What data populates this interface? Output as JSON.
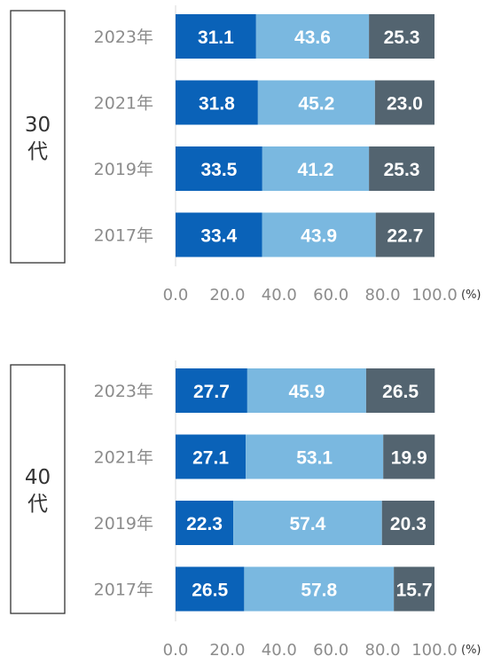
{
  "colors": {
    "series1": "#0a62b8",
    "series2": "#7ab8e0",
    "series3": "#536470",
    "box_border": "#333333",
    "category_text": "#8c8c8c"
  },
  "chart_data": [
    {
      "type": "bar",
      "orientation": "horizontal",
      "stacked": true,
      "group_label_line1": "30",
      "group_label_line2": "代",
      "categories": [
        "2023年",
        "2021年",
        "2019年",
        "2017年"
      ],
      "series": [
        {
          "values": [
            31.1,
            31.8,
            33.5,
            33.4
          ]
        },
        {
          "values": [
            43.6,
            45.2,
            41.2,
            43.9
          ]
        },
        {
          "values": [
            25.3,
            23.0,
            25.3,
            22.7
          ]
        }
      ],
      "value_labels": [
        [
          "31.1",
          "31.8",
          "33.5",
          "33.4"
        ],
        [
          "43.6",
          "45.2",
          "41.2",
          "43.9"
        ],
        [
          "25.3",
          "23.0",
          "25.3",
          "22.7"
        ]
      ],
      "xlim": [
        0,
        100
      ],
      "xticks": [
        "0.0",
        "20.0",
        "40.0",
        "60.0",
        "80.0",
        "100.0"
      ],
      "unit": "(%)",
      "grid": false,
      "legend": "none"
    },
    {
      "type": "bar",
      "orientation": "horizontal",
      "stacked": true,
      "group_label_line1": "40",
      "group_label_line2": "代",
      "categories": [
        "2023年",
        "2021年",
        "2019年",
        "2017年"
      ],
      "series": [
        {
          "values": [
            27.7,
            27.1,
            22.3,
            26.5
          ]
        },
        {
          "values": [
            45.9,
            53.1,
            57.4,
            57.8
          ]
        },
        {
          "values": [
            26.5,
            19.9,
            20.3,
            15.7
          ]
        }
      ],
      "value_labels": [
        [
          "27.7",
          "27.1",
          "22.3",
          "26.5"
        ],
        [
          "45.9",
          "53.1",
          "57.4",
          "57.8"
        ],
        [
          "26.5",
          "19.9",
          "20.3",
          "15.7"
        ]
      ],
      "xlim": [
        0,
        100
      ],
      "xticks": [
        "0.0",
        "20.0",
        "40.0",
        "60.0",
        "80.0",
        "100.0"
      ],
      "unit": "(%)",
      "grid": false,
      "legend": "none"
    }
  ]
}
